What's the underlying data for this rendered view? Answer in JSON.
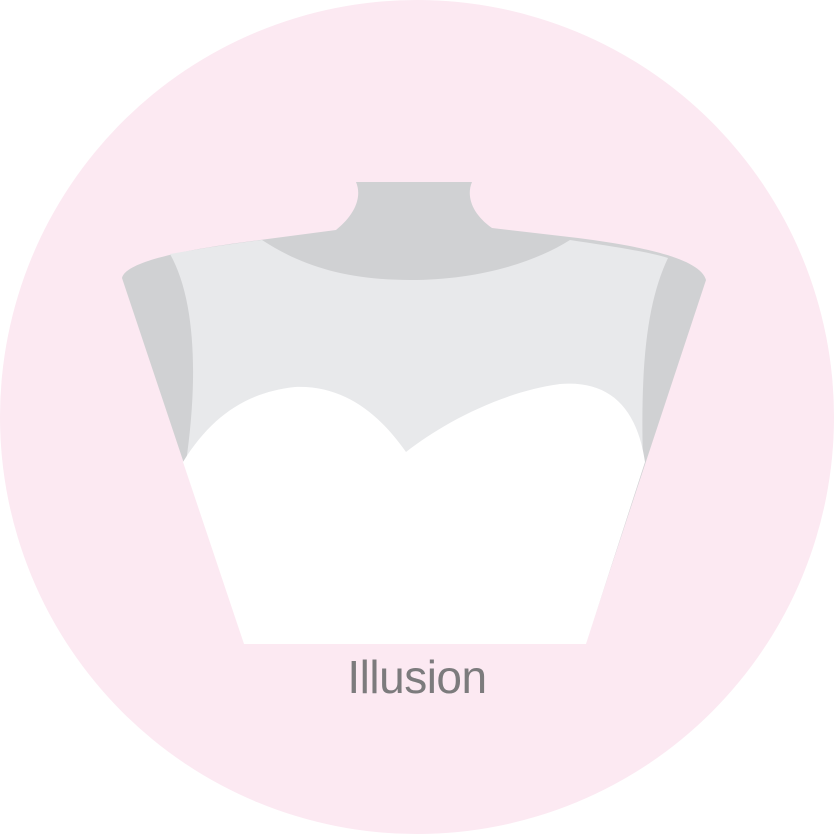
{
  "neckline": {
    "label": "Illusion"
  },
  "colors": {
    "background_circle": "#fce9f2",
    "mannequin": "#d0d1d3",
    "illusion_mesh": "#e8e9eb",
    "bodice": "#ffffff",
    "label_text": "#7c7b7d"
  }
}
